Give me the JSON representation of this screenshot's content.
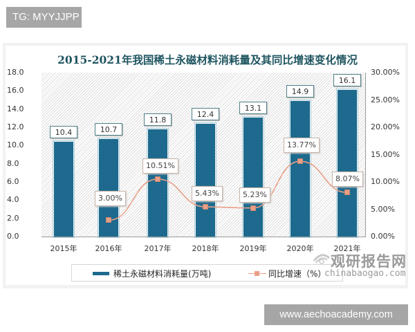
{
  "watermarks": {
    "top_tag": "TG: MYYJJPP",
    "bottom_tag": "www.aechoacademy.com",
    "source_cn": "观研报告网",
    "source_en": "chinabaogao.com"
  },
  "chart_data": {
    "type": "bar+line",
    "title": "2015-2021年我国稀土永磁材料消耗量及其同比增速变化情况",
    "categories": [
      "2015年",
      "2016年",
      "2017年",
      "2018年",
      "2019年",
      "2020年",
      "2021年"
    ],
    "series": [
      {
        "name": "稀土永磁材料消耗量(万吨)",
        "type": "bar",
        "axis": "left",
        "color": "#1d6a8e",
        "values": [
          10.4,
          10.7,
          11.8,
          12.4,
          13.1,
          14.9,
          16.1
        ],
        "labels": [
          "10.4",
          "10.7",
          "11.8",
          "12.4",
          "13.1",
          "14.9",
          "16.1"
        ]
      },
      {
        "name": "同比增速（%）",
        "type": "line",
        "axis": "right",
        "color": "#e8a088",
        "values": [
          null,
          3.0,
          10.51,
          5.43,
          5.23,
          13.77,
          8.07
        ],
        "labels": [
          "",
          "3.00%",
          "10.51%",
          "5.43%",
          "5.23%",
          "13.77%",
          "8.07%"
        ]
      }
    ],
    "y_left": {
      "ylim": [
        0,
        18
      ],
      "ticks": [
        "18.0",
        "16.0",
        "14.0",
        "12.0",
        "10.0",
        "8.0",
        "6.0",
        "4.0",
        "2.0",
        "0.0"
      ]
    },
    "y_right": {
      "ylim": [
        0,
        30
      ],
      "ticks": [
        "30.00%",
        "25.00%",
        "20.00%",
        "15.00%",
        "10.00%",
        "5.00%",
        "0.00%"
      ]
    },
    "legend": {
      "position": "bottom",
      "items": [
        "稀土永磁材料消耗量(万吨)",
        "同比增速（%）"
      ]
    },
    "grid": false,
    "background_pattern": "diagonal hatch"
  }
}
